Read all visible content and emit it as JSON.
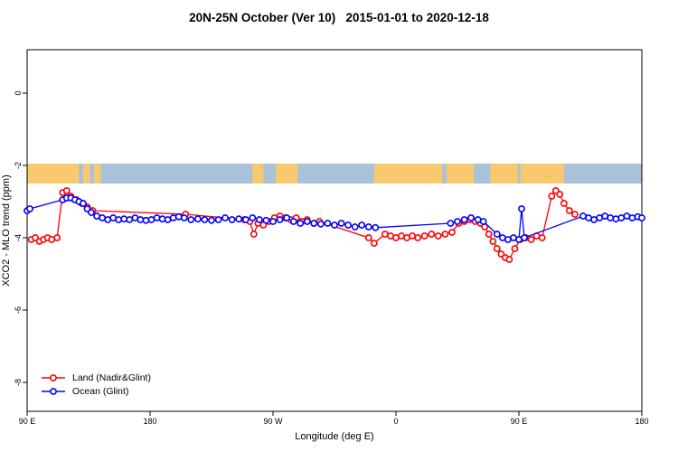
{
  "chart_data": {
    "type": "line",
    "title": "20N-25N October (Ver 10)   2015-01-01 to 2020-12-18",
    "xlabel": "Longitude (deg E)",
    "ylabel": "XCO2 - MLO trend (ppm)",
    "x_domain": [
      90,
      540
    ],
    "ylim": [
      -8.8,
      1.2
    ],
    "grid": false,
    "legend_position": "bottom-left",
    "x_ticks": [
      {
        "value": 90,
        "label": "90 E"
      },
      {
        "value": 180,
        "label": "180"
      },
      {
        "value": 270,
        "label": "90 W"
      },
      {
        "value": 360,
        "label": "0"
      },
      {
        "value": 450,
        "label": "90 E"
      },
      {
        "value": 540,
        "label": "180"
      }
    ],
    "y_ticks": [
      {
        "value": 0,
        "label": "0"
      },
      {
        "value": -2,
        "label": "-2"
      },
      {
        "value": -4,
        "label": "-4"
      },
      {
        "value": -6,
        "label": "-6"
      },
      {
        "value": -8,
        "label": "-8"
      }
    ],
    "map_strip": {
      "description": "land-ocean-reference-strip",
      "y_range": [
        -2.5,
        -1.95
      ],
      "ocean_color": "#a9c2d9",
      "land_color": "#f9c96d",
      "land_patches": [
        [
          90,
          128
        ],
        [
          131,
          136
        ],
        [
          139,
          144
        ],
        [
          255,
          263
        ],
        [
          272,
          288
        ],
        [
          344,
          394
        ],
        [
          397,
          417
        ],
        [
          429,
          449
        ],
        [
          451,
          483
        ]
      ]
    },
    "series": [
      {
        "name": "Land (Nadir&Glint)",
        "color": "#ff0000",
        "points": [
          [
            93,
            -4.05
          ],
          [
            96,
            -4.0
          ],
          [
            99,
            -4.1
          ],
          [
            102,
            -4.05
          ],
          [
            105,
            -4.0
          ],
          [
            108,
            -4.05
          ],
          [
            112,
            -4.0
          ],
          [
            116,
            -2.75
          ],
          [
            119,
            -2.7
          ],
          [
            122,
            -2.85
          ],
          [
            126,
            -2.95
          ],
          [
            130,
            -3.05
          ],
          [
            134,
            -3.15
          ],
          [
            138,
            -3.25
          ],
          [
            206,
            -3.35
          ],
          [
            249,
            -3.5
          ],
          [
            253,
            -3.55
          ],
          [
            256,
            -3.9
          ],
          [
            259,
            -3.6
          ],
          [
            263,
            -3.65
          ],
          [
            267,
            -3.55
          ],
          [
            271,
            -3.45
          ],
          [
            275,
            -3.4
          ],
          [
            279,
            -3.45
          ],
          [
            283,
            -3.5
          ],
          [
            287,
            -3.45
          ],
          [
            291,
            -3.55
          ],
          [
            295,
            -3.5
          ],
          [
            300,
            -3.6
          ],
          [
            304,
            -3.55
          ],
          [
            340,
            -4.0
          ],
          [
            344,
            -4.15
          ],
          [
            352,
            -3.9
          ],
          [
            356,
            -3.95
          ],
          [
            360,
            -4.0
          ],
          [
            364,
            -3.95
          ],
          [
            368,
            -4.0
          ],
          [
            372,
            -3.95
          ],
          [
            376,
            -4.0
          ],
          [
            381,
            -3.95
          ],
          [
            386,
            -3.9
          ],
          [
            391,
            -3.95
          ],
          [
            396,
            -3.9
          ],
          [
            401,
            -3.85
          ],
          [
            406,
            -3.6
          ],
          [
            410,
            -3.55
          ],
          [
            414,
            -3.5
          ],
          [
            418,
            -3.55
          ],
          [
            422,
            -3.6
          ],
          [
            425,
            -3.7
          ],
          [
            428,
            -3.9
          ],
          [
            431,
            -4.1
          ],
          [
            434,
            -4.3
          ],
          [
            437,
            -4.45
          ],
          [
            440,
            -4.55
          ],
          [
            443,
            -4.6
          ],
          [
            447,
            -4.3
          ],
          [
            451,
            -4.05
          ],
          [
            455,
            -4.0
          ],
          [
            459,
            -4.05
          ],
          [
            463,
            -3.95
          ],
          [
            467,
            -4.0
          ],
          [
            474,
            -2.85
          ],
          [
            477,
            -2.7
          ],
          [
            480,
            -2.8
          ],
          [
            483,
            -3.05
          ],
          [
            487,
            -3.25
          ],
          [
            491,
            -3.35
          ]
        ]
      },
      {
        "name": "Ocean (Glint)",
        "color": "#0000ff",
        "points": [
          [
            90,
            -3.25
          ],
          [
            92,
            -3.2
          ],
          [
            116,
            -2.95
          ],
          [
            119,
            -2.9
          ],
          [
            122,
            -2.9
          ],
          [
            125,
            -2.95
          ],
          [
            128,
            -3.0
          ],
          [
            131,
            -3.05
          ],
          [
            134,
            -3.2
          ],
          [
            137,
            -3.3
          ],
          [
            141,
            -3.4
          ],
          [
            145,
            -3.45
          ],
          [
            149,
            -3.5
          ],
          [
            153,
            -3.45
          ],
          [
            157,
            -3.5
          ],
          [
            161,
            -3.48
          ],
          [
            165,
            -3.5
          ],
          [
            169,
            -3.45
          ],
          [
            173,
            -3.5
          ],
          [
            177,
            -3.52
          ],
          [
            181,
            -3.5
          ],
          [
            185,
            -3.45
          ],
          [
            189,
            -3.48
          ],
          [
            193,
            -3.5
          ],
          [
            197,
            -3.45
          ],
          [
            201,
            -3.42
          ],
          [
            205,
            -3.45
          ],
          [
            210,
            -3.5
          ],
          [
            215,
            -3.48
          ],
          [
            220,
            -3.5
          ],
          [
            225,
            -3.52
          ],
          [
            230,
            -3.5
          ],
          [
            235,
            -3.45
          ],
          [
            240,
            -3.5
          ],
          [
            245,
            -3.48
          ],
          [
            250,
            -3.5
          ],
          [
            255,
            -3.45
          ],
          [
            260,
            -3.5
          ],
          [
            265,
            -3.52
          ],
          [
            270,
            -3.55
          ],
          [
            275,
            -3.5
          ],
          [
            280,
            -3.45
          ],
          [
            285,
            -3.55
          ],
          [
            290,
            -3.6
          ],
          [
            295,
            -3.55
          ],
          [
            300,
            -3.6
          ],
          [
            305,
            -3.62
          ],
          [
            310,
            -3.6
          ],
          [
            315,
            -3.65
          ],
          [
            320,
            -3.6
          ],
          [
            325,
            -3.65
          ],
          [
            330,
            -3.7
          ],
          [
            335,
            -3.65
          ],
          [
            340,
            -3.7
          ],
          [
            345,
            -3.72
          ],
          [
            400,
            -3.6
          ],
          [
            405,
            -3.55
          ],
          [
            410,
            -3.5
          ],
          [
            415,
            -3.45
          ],
          [
            420,
            -3.5
          ],
          [
            424,
            -3.55
          ],
          [
            434,
            -3.9
          ],
          [
            438,
            -4.0
          ],
          [
            442,
            -4.05
          ],
          [
            446,
            -4.0
          ],
          [
            450,
            -4.05
          ],
          [
            452,
            -3.2
          ],
          [
            454,
            -4.0
          ],
          [
            497,
            -3.4
          ],
          [
            501,
            -3.45
          ],
          [
            505,
            -3.5
          ],
          [
            509,
            -3.45
          ],
          [
            513,
            -3.4
          ],
          [
            517,
            -3.45
          ],
          [
            521,
            -3.48
          ],
          [
            525,
            -3.45
          ],
          [
            529,
            -3.4
          ],
          [
            533,
            -3.45
          ],
          [
            537,
            -3.42
          ],
          [
            540,
            -3.45
          ]
        ]
      }
    ]
  }
}
